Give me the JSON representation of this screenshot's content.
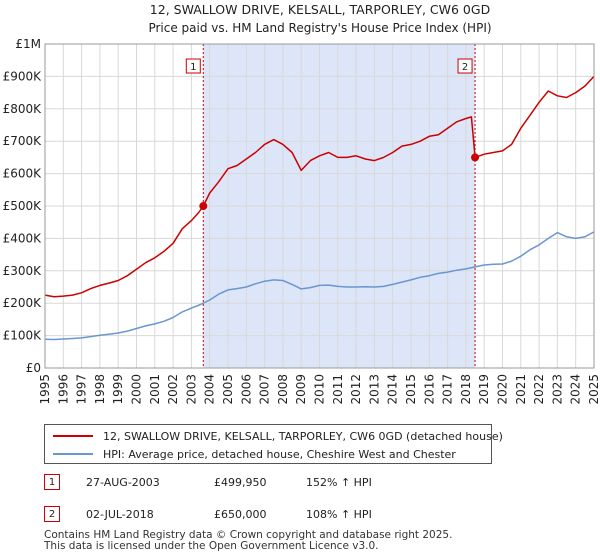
{
  "chart_data": {
    "type": "line",
    "title": "12, SWALLOW DRIVE, KELSALL, TARPORLEY, CW6 0GD",
    "subtitle": "Price paid vs. HM Land Registry's House Price Index (HPI)",
    "xlim": [
      1995,
      2025
    ],
    "ylim": [
      0,
      1000000
    ],
    "y_ticks": [
      0,
      100000,
      200000,
      300000,
      400000,
      500000,
      600000,
      700000,
      800000,
      900000,
      1000000
    ],
    "y_tick_labels": [
      "£0",
      "£100K",
      "£200K",
      "£300K",
      "£400K",
      "£500K",
      "£600K",
      "£700K",
      "£800K",
      "£900K",
      "£1M"
    ],
    "x_ticks": [
      1995,
      1996,
      1997,
      1998,
      1999,
      2000,
      2001,
      2002,
      2003,
      2004,
      2005,
      2006,
      2007,
      2008,
      2009,
      2010,
      2011,
      2012,
      2013,
      2014,
      2015,
      2016,
      2017,
      2018,
      2019,
      2020,
      2021,
      2022,
      2023,
      2024,
      2025
    ],
    "grid": true,
    "shaded_period": [
      2003.65,
      2018.5
    ],
    "series": [
      {
        "name": "12, SWALLOW DRIVE, KELSALL, TARPORLEY, CW6 0GD (detached house)",
        "color": "#cc0000",
        "x": [
          1995.0,
          1995.5,
          1996.0,
          1996.5,
          1997.0,
          1997.5,
          1998.0,
          1998.5,
          1999.0,
          1999.5,
          2000.0,
          2000.5,
          2001.0,
          2001.5,
          2002.0,
          2002.5,
          2003.0,
          2003.4,
          2003.65,
          2004.0,
          2004.5,
          2005.0,
          2005.5,
          2006.0,
          2006.5,
          2007.0,
          2007.5,
          2008.0,
          2008.5,
          2009.0,
          2009.5,
          2010.0,
          2010.5,
          2011.0,
          2011.5,
          2012.0,
          2012.5,
          2013.0,
          2013.5,
          2014.0,
          2014.5,
          2015.0,
          2015.5,
          2016.0,
          2016.5,
          2017.0,
          2017.5,
          2018.0,
          2018.3,
          2018.5,
          2019.0,
          2019.5,
          2020.0,
          2020.5,
          2021.0,
          2021.5,
          2022.0,
          2022.5,
          2023.0,
          2023.5,
          2024.0,
          2024.5,
          2025.0
        ],
        "values": [
          225000,
          220000,
          222000,
          225000,
          232000,
          245000,
          255000,
          262000,
          270000,
          285000,
          305000,
          325000,
          340000,
          360000,
          385000,
          430000,
          455000,
          480000,
          499950,
          540000,
          575000,
          615000,
          625000,
          645000,
          665000,
          690000,
          705000,
          690000,
          665000,
          610000,
          640000,
          655000,
          665000,
          650000,
          650000,
          655000,
          645000,
          640000,
          650000,
          665000,
          685000,
          690000,
          700000,
          715000,
          720000,
          740000,
          760000,
          770000,
          775000,
          650000,
          660000,
          665000,
          670000,
          690000,
          740000,
          780000,
          820000,
          855000,
          840000,
          835000,
          850000,
          870000,
          900000
        ]
      },
      {
        "name": "HPI: Average price, detached house, Cheshire West and Chester",
        "color": "#6a96d2",
        "x": [
          1995.0,
          1995.5,
          1996.0,
          1996.5,
          1997.0,
          1997.5,
          1998.0,
          1998.5,
          1999.0,
          1999.5,
          2000.0,
          2000.5,
          2001.0,
          2001.5,
          2002.0,
          2002.5,
          2003.0,
          2003.5,
          2004.0,
          2004.5,
          2005.0,
          2005.5,
          2006.0,
          2006.5,
          2007.0,
          2007.5,
          2008.0,
          2008.5,
          2009.0,
          2009.5,
          2010.0,
          2010.5,
          2011.0,
          2011.5,
          2012.0,
          2012.5,
          2013.0,
          2013.5,
          2014.0,
          2014.5,
          2015.0,
          2015.5,
          2016.0,
          2016.5,
          2017.0,
          2017.5,
          2018.0,
          2018.5,
          2019.0,
          2019.5,
          2020.0,
          2020.5,
          2021.0,
          2021.5,
          2022.0,
          2022.5,
          2023.0,
          2023.5,
          2024.0,
          2024.5,
          2025.0
        ],
        "values": [
          89000,
          88000,
          89500,
          91000,
          93000,
          97000,
          101000,
          104000,
          108000,
          114000,
          122000,
          130000,
          136000,
          144000,
          156000,
          173000,
          185000,
          196000,
          210000,
          228000,
          241000,
          245000,
          250000,
          260000,
          268000,
          272000,
          270000,
          258000,
          244000,
          248000,
          255000,
          256000,
          252000,
          250000,
          250000,
          251000,
          250000,
          252000,
          258000,
          265000,
          272000,
          280000,
          285000,
          292000,
          296000,
          302000,
          306000,
          312000,
          318000,
          320000,
          321000,
          330000,
          345000,
          365000,
          380000,
          400000,
          418000,
          405000,
          400000,
          405000,
          420000
        ]
      }
    ],
    "transactions": [
      {
        "id": "1",
        "date": "27-AUG-2003",
        "x": 2003.65,
        "price": 499950,
        "price_label": "£499,950",
        "hpi_label": "152% ↑ HPI"
      },
      {
        "id": "2",
        "date": "02-JUL-2018",
        "x": 2018.5,
        "price": 650000,
        "price_label": "£650,000",
        "hpi_label": "108% ↑ HPI"
      }
    ]
  },
  "footer": {
    "line1": "Contains HM Land Registry data © Crown copyright and database right 2025.",
    "line2": "This data is licensed under the Open Government Licence v3.0."
  },
  "colors": {
    "price": "#cc0000",
    "hpi": "#6a96d2",
    "shade": "#dde6f8",
    "grid": "#d8d8d8",
    "plot_bg": "#ffffff"
  }
}
